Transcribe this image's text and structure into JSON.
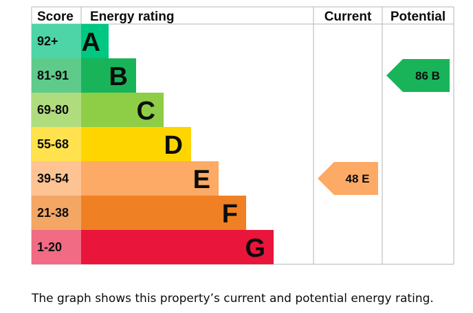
{
  "chart_data": {
    "type": "bar",
    "headers": {
      "score": "Score",
      "rating": "Energy rating",
      "current": "Current",
      "potential": "Potential"
    },
    "bands": [
      {
        "letter": "A",
        "range": "92+",
        "color": "#00c781",
        "score_color": "#4dd5a7"
      },
      {
        "letter": "B",
        "range": "81-91",
        "color": "#19b459",
        "score_color": "#5ecb8b"
      },
      {
        "letter": "C",
        "range": "69-80",
        "color": "#8dce46",
        "score_color": "#afdd7e"
      },
      {
        "letter": "D",
        "range": "55-68",
        "color": "#ffd500",
        "score_color": "#ffe24d"
      },
      {
        "letter": "E",
        "range": "39-54",
        "color": "#fcaa65",
        "score_color": "#fdc393"
      },
      {
        "letter": "F",
        "range": "21-38",
        "color": "#ef8023",
        "score_color": "#f4a665"
      },
      {
        "letter": "G",
        "range": "1-20",
        "color": "#e9153b",
        "score_color": "#f06b83"
      }
    ],
    "current": {
      "value": 48,
      "letter": "E",
      "label": "48 E",
      "color": "#fcaa65"
    },
    "potential": {
      "value": 86,
      "letter": "B",
      "label": "86 B",
      "color": "#19b459"
    }
  },
  "caption": "The graph shows this property’s current and potential energy rating."
}
